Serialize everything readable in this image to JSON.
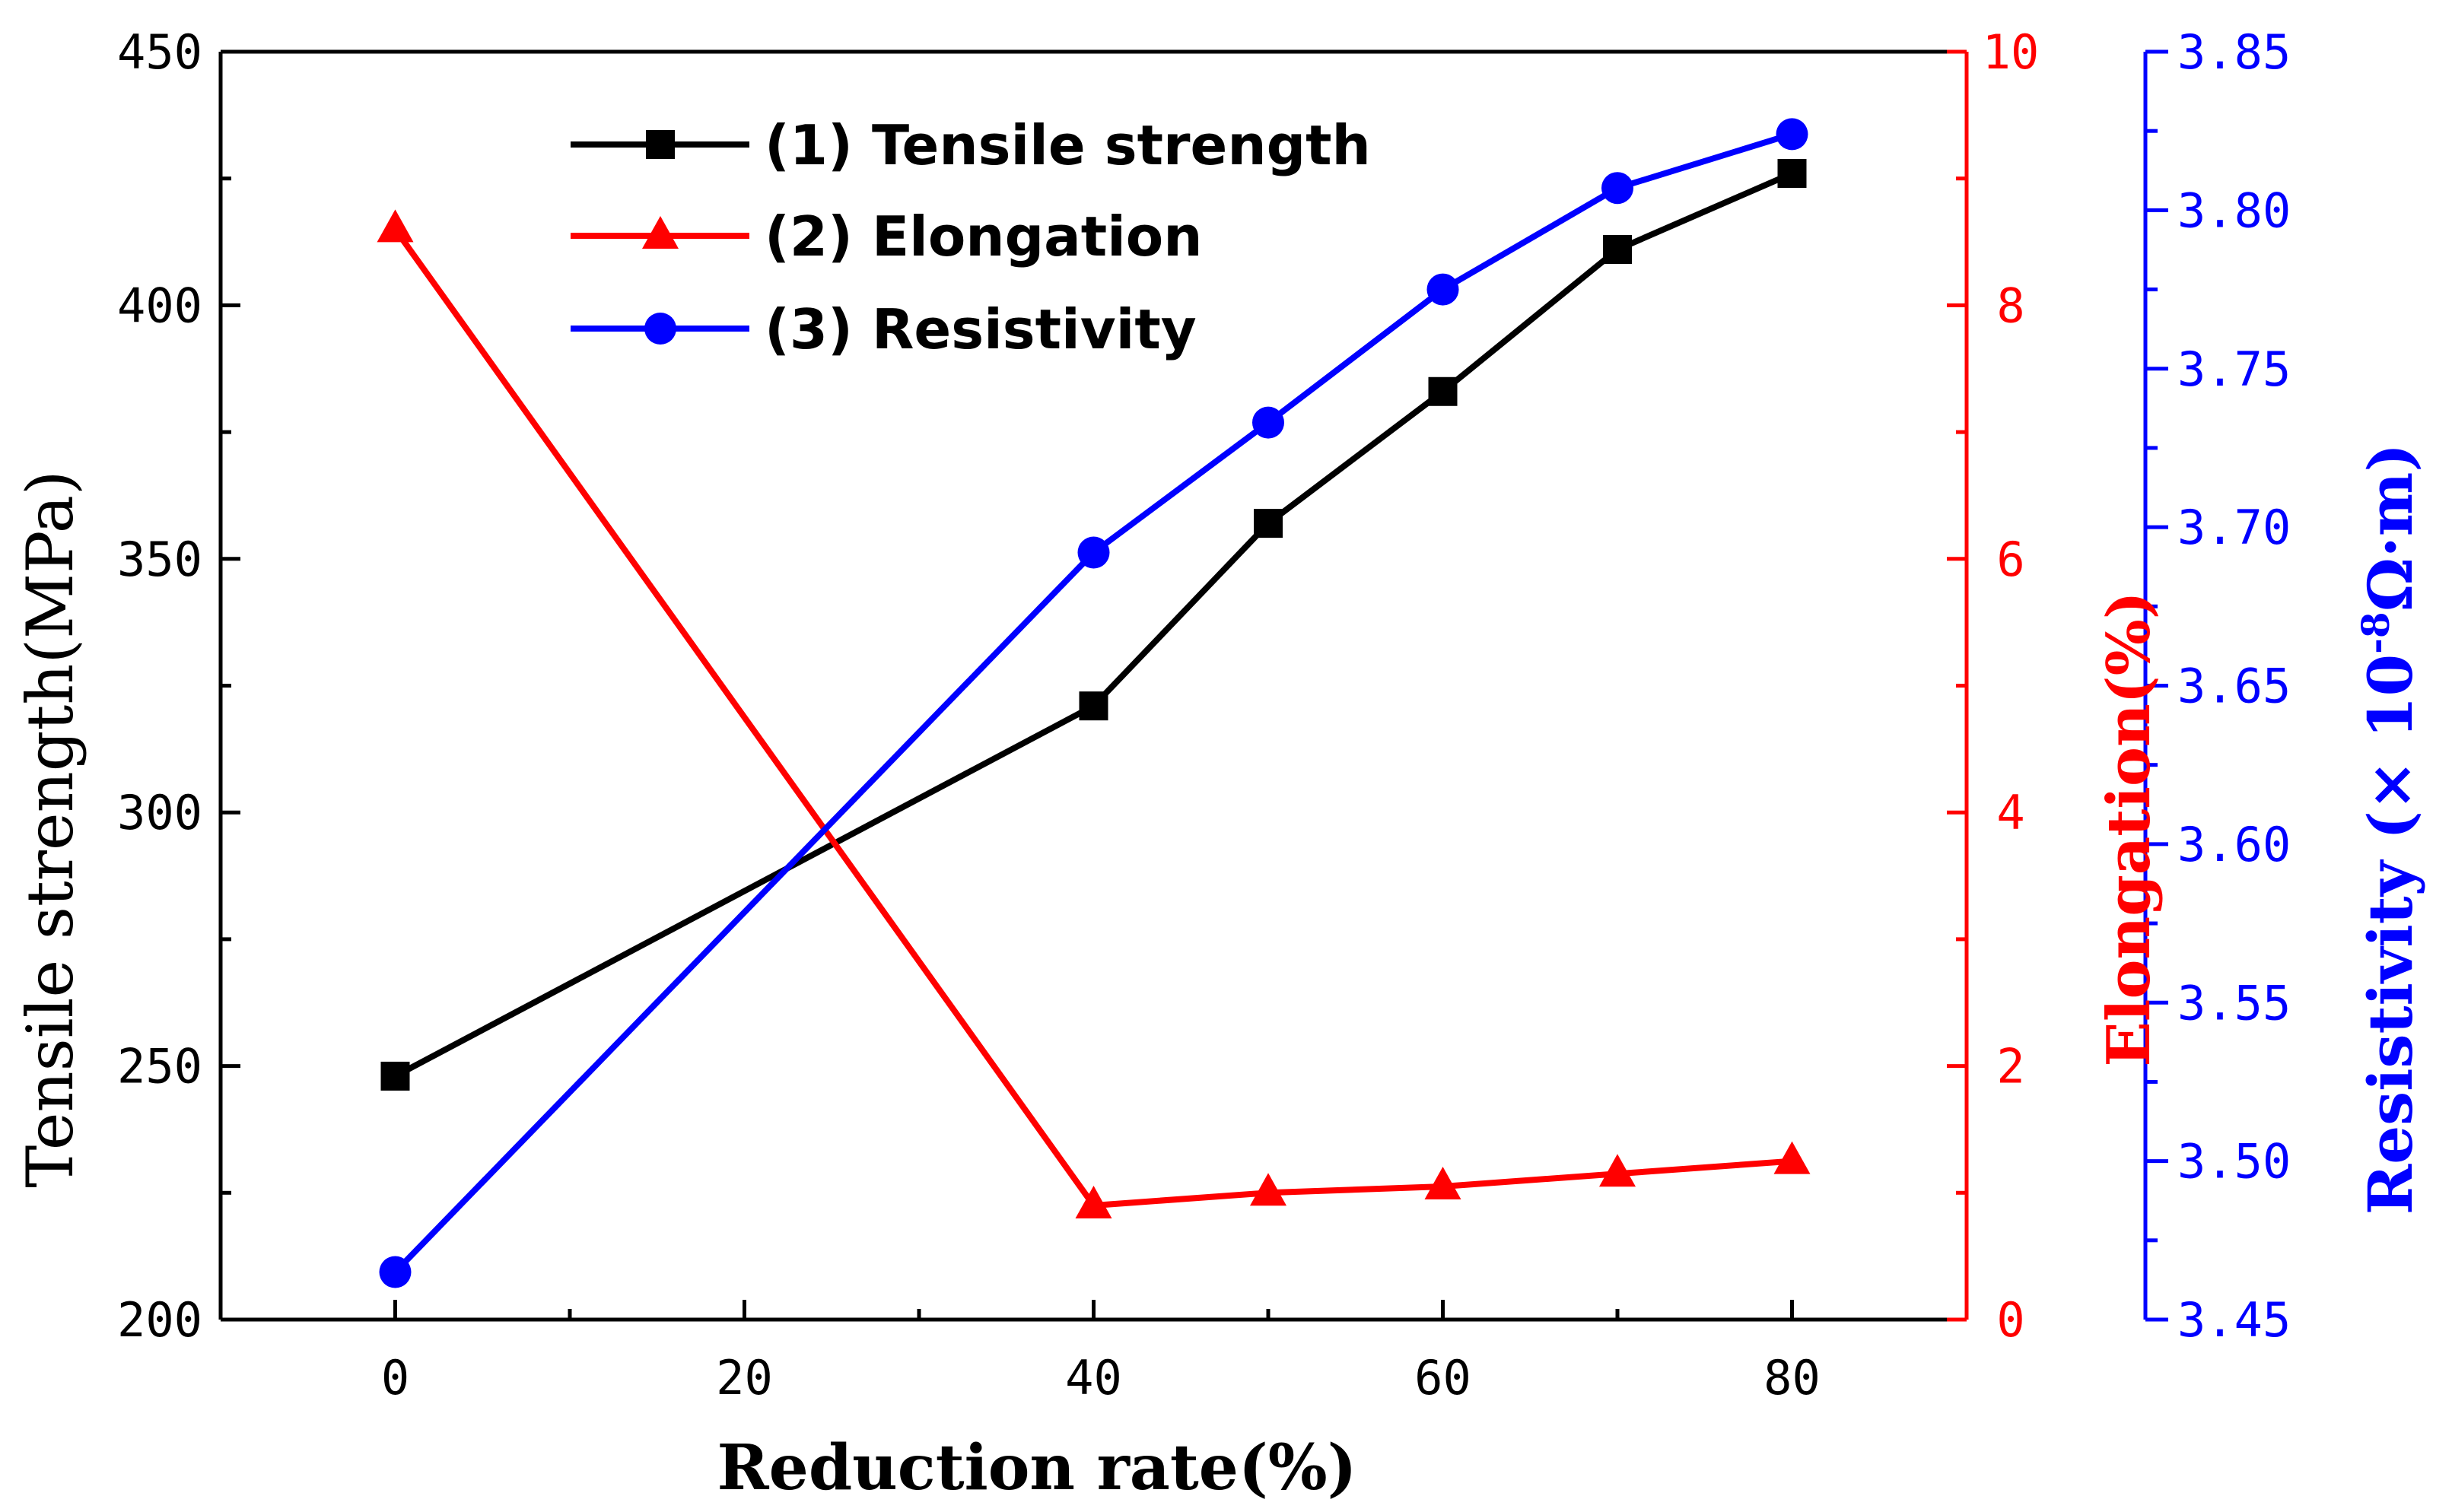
{
  "chart_data": {
    "type": "line",
    "title": "",
    "x": [
      0,
      40,
      50,
      60,
      70,
      80
    ],
    "xlabel": "Reduction rate(%)",
    "xlim": [
      -10,
      90
    ],
    "xticks": [
      0,
      20,
      40,
      60,
      80
    ],
    "xtick_labels": [
      "0",
      "20",
      "40",
      "60",
      "80"
    ],
    "axes": {
      "left": {
        "label": "Tensile strength(MPa)",
        "range": [
          200,
          450
        ],
        "ticks": [
          200,
          250,
          300,
          350,
          400,
          450
        ],
        "tick_labels": [
          "200",
          "250",
          "300",
          "350",
          "400",
          "450"
        ],
        "color": "#000000"
      },
      "right1": {
        "label": "Elongation(%)",
        "range": [
          0,
          10
        ],
        "ticks": [
          0,
          2,
          4,
          6,
          8,
          10
        ],
        "tick_labels": [
          "0",
          "2",
          "4",
          "6",
          "8",
          "10"
        ],
        "color": "#ff0000"
      },
      "right2": {
        "label_main": "Resistivity (× 10",
        "label_sup": "-8",
        "label_tail": "Ω·m)",
        "range": [
          3.45,
          3.85
        ],
        "ticks": [
          3.45,
          3.5,
          3.55,
          3.6,
          3.65,
          3.7,
          3.75,
          3.8,
          3.85
        ],
        "tick_labels": [
          "3.45",
          "3.50",
          "3.55",
          "3.60",
          "3.65",
          "3.70",
          "3.75",
          "3.80",
          "3.85"
        ],
        "color": "#0000ff"
      }
    },
    "series": [
      {
        "name": "Tensile strength",
        "legend_label": "(1)  Tensile strength",
        "axis": "left",
        "color": "#000000",
        "marker": "square",
        "values": [
          248,
          321,
          357,
          383,
          411,
          426
        ]
      },
      {
        "name": "Elongation",
        "legend_label": "(2)  Elongation",
        "axis": "right1",
        "color": "#ff0000",
        "marker": "triangle",
        "values": [
          8.6,
          0.9,
          1.0,
          1.05,
          1.15,
          1.25
        ]
      },
      {
        "name": "Resistivity",
        "legend_label": "(3)  Resistivity",
        "axis": "right2",
        "color": "#0000ff",
        "marker": "circle",
        "values": [
          3.465,
          3.692,
          3.733,
          3.775,
          3.807,
          3.824
        ]
      }
    ],
    "legend_position": "top-left",
    "grid": false
  }
}
